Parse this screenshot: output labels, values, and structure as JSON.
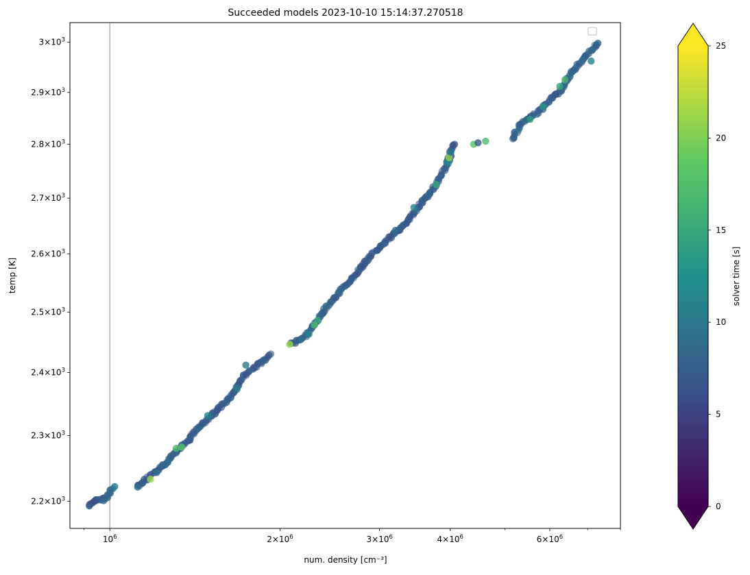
{
  "chart_data": {
    "type": "scatter",
    "title": "Succeeded models 2023-10-10 15:14:37.270518",
    "xlabel": "num. density [cm⁻³]",
    "ylabel": "temp [K]",
    "xscale": "log",
    "yscale": "log",
    "xlim": [
      850000,
      8000000
    ],
    "ylim": [
      2160,
      3040
    ],
    "x_ticks": [
      {
        "value": 1000000,
        "label": "10",
        "exp": "6"
      },
      {
        "value": 2000000,
        "label": "2×10",
        "exp": "6"
      },
      {
        "value": 3000000,
        "label": "3×10",
        "exp": "6"
      },
      {
        "value": 4000000,
        "label": "4×10",
        "exp": "6"
      },
      {
        "value": 6000000,
        "label": "6×10",
        "exp": "6"
      }
    ],
    "y_ticks": [
      {
        "value": 2200,
        "label": "2.2×10",
        "exp": "3"
      },
      {
        "value": 2300,
        "label": "2.3×10",
        "exp": "3"
      },
      {
        "value": 2400,
        "label": "2.4×10",
        "exp": "3"
      },
      {
        "value": 2500,
        "label": "2.5×10",
        "exp": "3"
      },
      {
        "value": 2600,
        "label": "2.6×10",
        "exp": "3"
      },
      {
        "value": 2700,
        "label": "2.7×10",
        "exp": "3"
      },
      {
        "value": 2800,
        "label": "2.8×10",
        "exp": "3"
      },
      {
        "value": 2900,
        "label": "2.9×10",
        "exp": "3"
      },
      {
        "value": 3000,
        "label": "3×10",
        "exp": "3"
      }
    ],
    "vline_x": 1000000,
    "legend": "top-right (empty)",
    "colorbar": {
      "label": "solver time [s]",
      "range": [
        0,
        25
      ],
      "ticks": [
        "0",
        "5",
        "10",
        "15",
        "20",
        "25"
      ],
      "colormap": "viridis",
      "extend": "both",
      "colors": [
        "#440154",
        "#3b528b",
        "#21918c",
        "#5ec962",
        "#fde725"
      ]
    },
    "track": [
      [
        920000,
        2195,
        7
      ],
      [
        960000,
        2203,
        7
      ],
      [
        990000,
        2205,
        8
      ],
      [
        1010000,
        2222,
        8
      ],
      [
        1120000,
        2222,
        7
      ],
      [
        1180000,
        2238,
        7
      ],
      [
        1250000,
        2255,
        8
      ],
      [
        1310000,
        2275,
        8
      ],
      [
        1370000,
        2290,
        7
      ],
      [
        1420000,
        2310,
        8
      ],
      [
        1480000,
        2322,
        7
      ],
      [
        1560000,
        2342,
        7
      ],
      [
        1640000,
        2362,
        8
      ],
      [
        1720000,
        2392,
        7
      ],
      [
        1820000,
        2412,
        7
      ],
      [
        1940000,
        2430,
        7
      ],
      [
        2100000,
        2447,
        8
      ],
      [
        2230000,
        2462,
        8
      ],
      [
        2300000,
        2478,
        8
      ],
      [
        2400000,
        2505,
        8
      ],
      [
        2550000,
        2535,
        8
      ],
      [
        2700000,
        2560,
        7
      ],
      [
        2850000,
        2590,
        7
      ],
      [
        3000000,
        2612,
        7
      ],
      [
        3150000,
        2632,
        7
      ],
      [
        3350000,
        2655,
        7
      ],
      [
        3550000,
        2690,
        7
      ],
      [
        3700000,
        2712,
        8
      ],
      [
        3850000,
        2740,
        8
      ],
      [
        3950000,
        2762,
        8
      ],
      [
        4050000,
        2800,
        7
      ],
      [
        5150000,
        2810,
        8
      ],
      [
        5350000,
        2840,
        8
      ],
      [
        5700000,
        2860,
        8
      ],
      [
        6000000,
        2885,
        7
      ],
      [
        6300000,
        2905,
        8
      ],
      [
        6550000,
        2940,
        8
      ],
      [
        6900000,
        2968,
        8
      ],
      [
        7300000,
        2997,
        8
      ]
    ],
    "points": [
      [
        920000,
        2193,
        7
      ],
      [
        940000,
        2200,
        6
      ],
      [
        975000,
        2201,
        8
      ],
      [
        1020000,
        2222,
        10
      ],
      [
        1120000,
        2221,
        9
      ],
      [
        1180000,
        2233,
        21
      ],
      [
        1210000,
        2243,
        9
      ],
      [
        1240000,
        2255,
        8
      ],
      [
        1310000,
        2280,
        17
      ],
      [
        1340000,
        2282,
        18
      ],
      [
        1490000,
        2331,
        11
      ],
      [
        1680000,
        2375,
        10
      ],
      [
        1740000,
        2412,
        10
      ],
      [
        2080000,
        2446,
        21
      ],
      [
        2250000,
        2463,
        11
      ],
      [
        2330000,
        2486,
        15
      ],
      [
        2300000,
        2478,
        17
      ],
      [
        3200000,
        2642,
        9
      ],
      [
        3450000,
        2683,
        11
      ],
      [
        3780000,
        2725,
        15
      ],
      [
        3950000,
        2766,
        12
      ],
      [
        3980000,
        2775,
        21
      ],
      [
        4010000,
        2785,
        10
      ],
      [
        4070000,
        2800,
        6
      ],
      [
        4400000,
        2800,
        18
      ],
      [
        4480000,
        2803,
        7
      ],
      [
        4620000,
        2806,
        17
      ],
      [
        5540000,
        2848,
        14
      ],
      [
        5850000,
        2872,
        13
      ],
      [
        6250000,
        2912,
        15
      ],
      [
        6380000,
        2925,
        17
      ],
      [
        7100000,
        2962,
        11
      ],
      [
        6850000,
        2963,
        9
      ],
      [
        7250000,
        2993,
        7
      ],
      [
        7300000,
        2998,
        8
      ]
    ]
  }
}
